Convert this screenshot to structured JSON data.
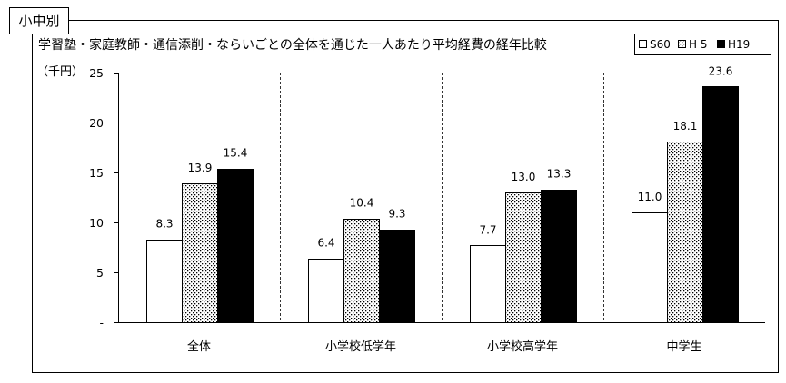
{
  "tab_label": "小中別",
  "chart_data": {
    "type": "bar",
    "title": "学習塾・家庭教師・通信添削・ならいごとの全体を通じた一人あたり平均経費の経年比較",
    "ylabel": "（千円）",
    "categories": [
      "全体",
      "小学校低学年",
      "小学校高学年",
      "中学生"
    ],
    "series": [
      {
        "name": "S60",
        "color": "#ffffff",
        "pattern": "none",
        "values": [
          8.3,
          6.4,
          7.7,
          11.0
        ],
        "value_labels": [
          "8.3",
          "6.4",
          "7.7",
          "11.0"
        ]
      },
      {
        "name": "H 5",
        "color": "#ffffff",
        "pattern": "dots",
        "values": [
          13.9,
          10.4,
          13.0,
          18.1
        ],
        "value_labels": [
          "13.9",
          "10.4",
          "13.0",
          "18.1"
        ]
      },
      {
        "name": "H19",
        "color": "#000000",
        "pattern": "none",
        "values": [
          15.4,
          9.3,
          13.3,
          23.6
        ],
        "value_labels": [
          "15.4",
          "9.3",
          "13.3",
          "23.6"
        ]
      }
    ],
    "ylim": [
      0,
      25
    ],
    "yticks": [
      0,
      5,
      10,
      15,
      20,
      25
    ],
    "ytick_labels": [
      "-",
      "5",
      "10",
      "15",
      "20",
      "25"
    ],
    "grid": false,
    "legend": "top-right",
    "bar_outline": "#000000"
  }
}
